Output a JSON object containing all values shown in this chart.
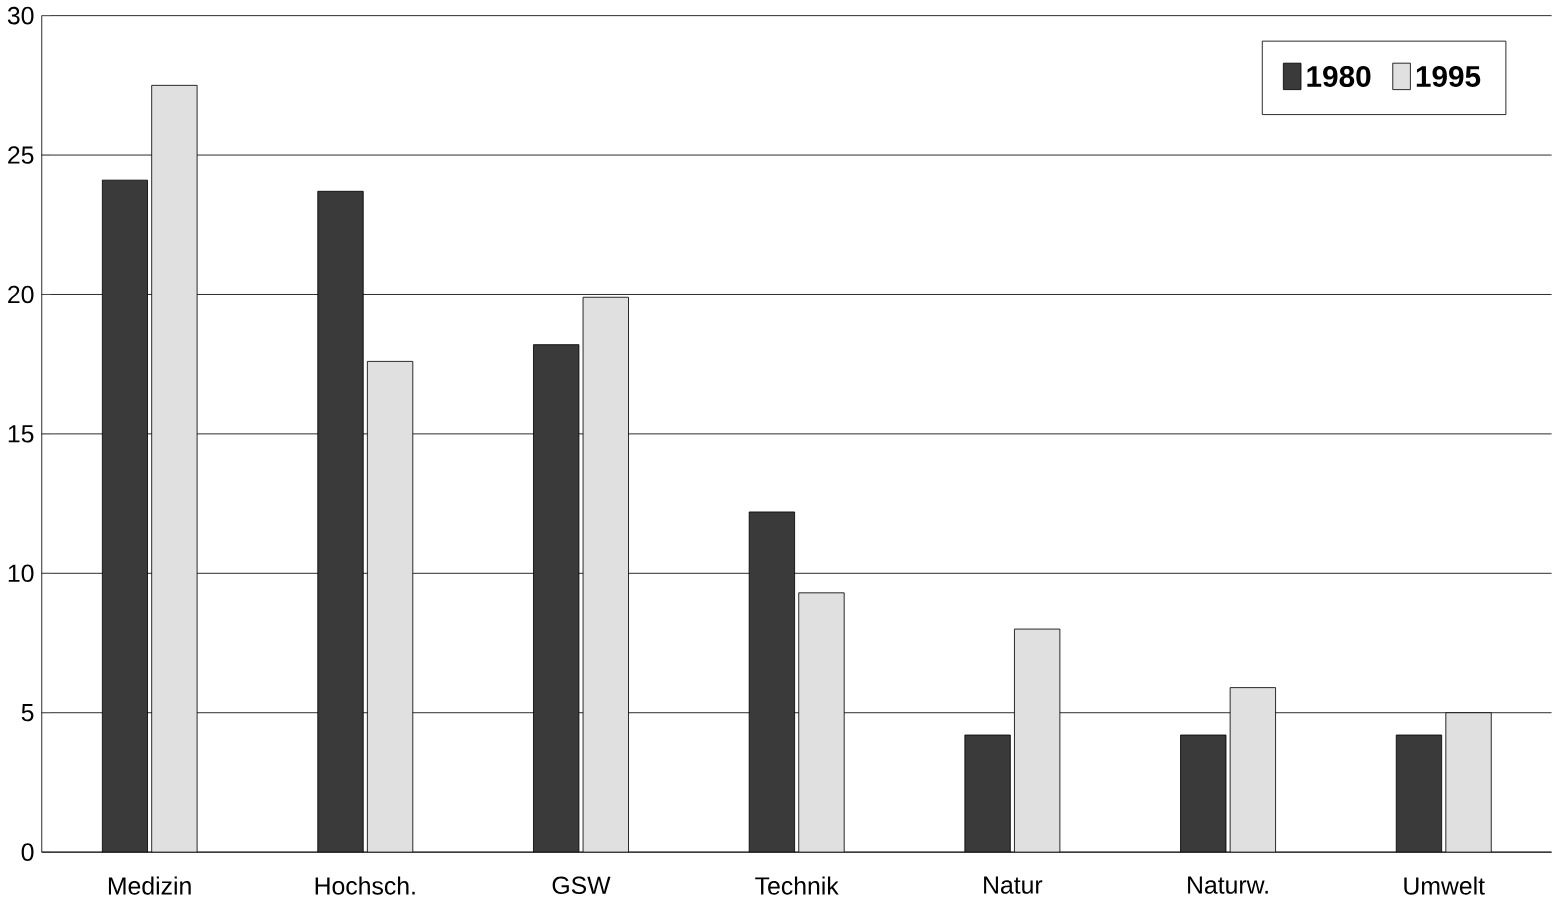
{
  "chart_data": {
    "type": "bar",
    "categories": [
      "Medizin",
      "Hochsch.",
      "GSW",
      "Technik",
      "Natur",
      "Naturw.",
      "Umwelt"
    ],
    "series": [
      {
        "name": "1980",
        "color": "#3a3a3a",
        "values": [
          24.1,
          23.7,
          18.2,
          12.2,
          4.2,
          4.2,
          4.2
        ]
      },
      {
        "name": "1995",
        "color": "#e0e0e0",
        "values": [
          27.5,
          17.6,
          19.9,
          9.3,
          8.0,
          5.9,
          5.0
        ]
      }
    ],
    "ylim": [
      0,
      30
    ],
    "yticks": [
      0,
      5,
      10,
      15,
      20,
      25,
      30
    ],
    "grid": "y",
    "legend": "top right"
  }
}
